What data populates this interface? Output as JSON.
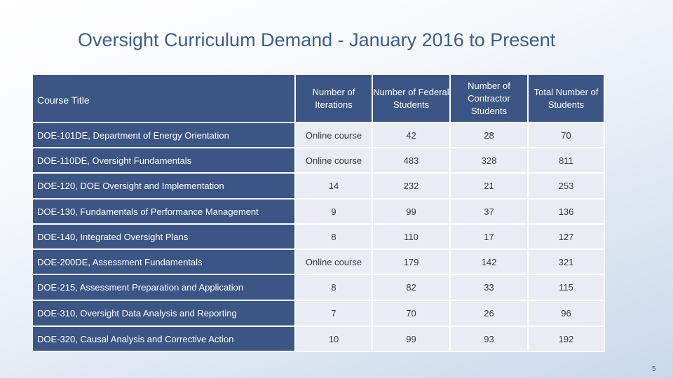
{
  "title": "Oversight Curriculum Demand - January 2016 to Present",
  "page_number": "5",
  "table": {
    "headers": [
      "Course Title",
      "Number of Iterations",
      "Number of Federal Students",
      "Number of Contractor Students",
      "Total Number of Students"
    ],
    "rows": [
      [
        "DOE-101DE, Department of Energy Orientation",
        "Online course",
        "42",
        "28",
        "70"
      ],
      [
        "DOE-110DE, Oversight Fundamentals",
        "Online course",
        "483",
        "328",
        "811"
      ],
      [
        "DOE-120, DOE Oversight and Implementation",
        "14",
        "232",
        "21",
        "253"
      ],
      [
        "DOE-130, Fundamentals of Performance Management",
        "9",
        "99",
        "37",
        "136"
      ],
      [
        "DOE-140, Integrated Oversight Plans",
        "8",
        "110",
        "17",
        "127"
      ],
      [
        "DOE-200DE, Assessment Fundamentals",
        "Online course",
        "179",
        "142",
        "321"
      ],
      [
        "DOE-215, Assessment Preparation and Application",
        "8",
        "82",
        "33",
        "115"
      ],
      [
        "DOE-310, Oversight Data Analysis and Reporting",
        "7",
        "70",
        "26",
        "96"
      ],
      [
        "DOE-320, Causal Analysis and Corrective Action",
        "10",
        "99",
        "93",
        "192"
      ]
    ]
  }
}
